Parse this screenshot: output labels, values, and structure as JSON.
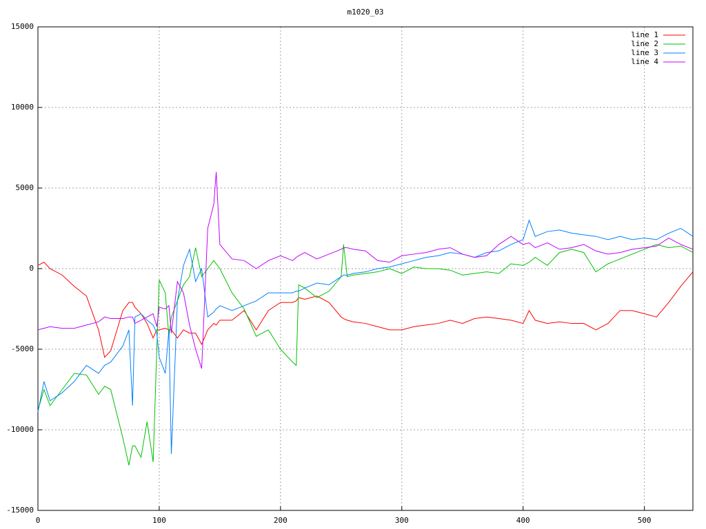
{
  "chart_data": {
    "type": "line",
    "title": "m1020_03",
    "x": [
      0,
      5,
      10,
      20,
      30,
      40,
      50,
      55,
      60,
      70,
      75,
      78,
      80,
      85,
      90,
      95,
      98,
      100,
      105,
      108,
      110,
      115,
      120,
      125,
      130,
      135,
      140,
      145,
      147,
      150,
      160,
      170,
      180,
      190,
      200,
      210,
      213,
      215,
      220,
      230,
      240,
      250,
      252,
      255,
      260,
      270,
      280,
      290,
      300,
      310,
      320,
      330,
      340,
      350,
      360,
      370,
      380,
      390,
      400,
      405,
      410,
      420,
      430,
      440,
      450,
      460,
      470,
      480,
      490,
      500,
      510,
      520,
      530,
      540
    ],
    "series": [
      {
        "name": "line 1",
        "color": "#ff0000",
        "values": [
          200,
          400,
          0,
          -400,
          -1100,
          -1700,
          -3800,
          -5500,
          -5100,
          -2600,
          -2100,
          -2100,
          -2400,
          -2800,
          -3400,
          -4300,
          -3800,
          -3800,
          -3700,
          -3800,
          -3800,
          -4300,
          -3800,
          -4000,
          -4000,
          -4700,
          -3800,
          -3400,
          -3500,
          -3200,
          -3200,
          -2600,
          -3800,
          -2600,
          -2100,
          -2100,
          -2000,
          -1800,
          -1900,
          -1700,
          -2100,
          -3000,
          -3100,
          -3200,
          -3300,
          -3400,
          -3600,
          -3800,
          -3800,
          -3600,
          -3500,
          -3400,
          -3200,
          -3400,
          -3100,
          -3000,
          -3100,
          -3200,
          -3400,
          -2600,
          -3200,
          -3400,
          -3300,
          -3400,
          -3400,
          -3800,
          -3400,
          -2600,
          -2600,
          -2800,
          -3000,
          -2100,
          -1100,
          -200
        ]
      },
      {
        "name": "line 2",
        "color": "#00c000",
        "values": [
          -8800,
          -7500,
          -8500,
          -7500,
          -6500,
          -6600,
          -7800,
          -7300,
          -7500,
          -10500,
          -12200,
          -11000,
          -11000,
          -11700,
          -9500,
          -12000,
          -5000,
          -700,
          -1500,
          -4200,
          -3000,
          -2000,
          -1000,
          -500,
          1300,
          -500,
          0,
          500,
          300,
          0,
          -1500,
          -2500,
          -4200,
          -3800,
          -5000,
          -5800,
          -6000,
          -1000,
          -1200,
          -1800,
          -1400,
          -500,
          1500,
          -500,
          -400,
          -300,
          -200,
          0,
          -300,
          100,
          0,
          0,
          -100,
          -400,
          -300,
          -200,
          -300,
          300,
          200,
          400,
          700,
          200,
          1000,
          1200,
          1000,
          -200,
          300,
          600,
          900,
          1200,
          1500,
          1300,
          1400,
          1000
        ]
      },
      {
        "name": "line 3",
        "color": "#0080ff",
        "values": [
          -8900,
          -7000,
          -8200,
          -7700,
          -7000,
          -6000,
          -6500,
          -6000,
          -5800,
          -4800,
          -3800,
          -8500,
          -3000,
          -2800,
          -3200,
          -3500,
          -4000,
          -5500,
          -6500,
          -3800,
          -11500,
          -2000,
          200,
          1200,
          -800,
          0,
          -3000,
          -2700,
          -2500,
          -2300,
          -2600,
          -2300,
          -2000,
          -1500,
          -1500,
          -1500,
          -1400,
          -1400,
          -1200,
          -900,
          -1000,
          -500,
          -400,
          -400,
          -300,
          -200,
          0,
          100,
          300,
          500,
          700,
          800,
          1000,
          900,
          700,
          1000,
          1100,
          1500,
          1800,
          3000,
          2000,
          2300,
          2400,
          2200,
          2100,
          2000,
          1800,
          2000,
          1800,
          1900,
          1800,
          2200,
          2500,
          2000
        ]
      },
      {
        "name": "line 4",
        "color": "#c000ff",
        "values": [
          -3800,
          -3700,
          -3600,
          -3700,
          -3700,
          -3500,
          -3300,
          -3000,
          -3100,
          -3100,
          -3000,
          -3000,
          -3400,
          -3200,
          -3000,
          -2800,
          -3600,
          -2400,
          -2500,
          -2300,
          -4000,
          -800,
          -1500,
          -3500,
          -5000,
          -6200,
          2500,
          4000,
          6000,
          1500,
          600,
          500,
          0,
          500,
          800,
          500,
          700,
          800,
          1000,
          600,
          900,
          1200,
          1300,
          1300,
          1200,
          1100,
          500,
          400,
          800,
          900,
          1000,
          1200,
          1300,
          900,
          700,
          800,
          1500,
          2000,
          1500,
          1600,
          1300,
          1600,
          1200,
          1300,
          1500,
          1100,
          900,
          1000,
          1200,
          1300,
          1400,
          1900,
          1500,
          1200
        ]
      }
    ],
    "xlim": [
      0,
      540
    ],
    "xticks": [
      0,
      100,
      200,
      300,
      400,
      500
    ],
    "ylim": [
      -15000,
      15000
    ],
    "yticks": [
      -15000,
      -10000,
      -5000,
      0,
      5000,
      10000,
      15000
    ],
    "grid": true,
    "legend": "top-right"
  }
}
